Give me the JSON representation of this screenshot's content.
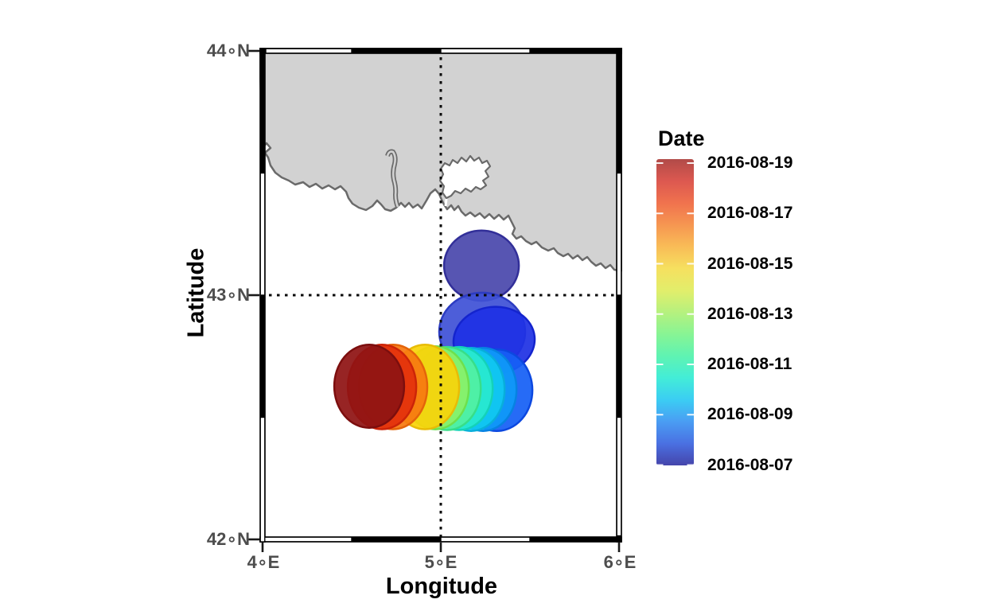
{
  "figure": {
    "x_axis": {
      "title": "Longitude",
      "tick_labels": [
        "4∘E",
        "5∘E",
        "6∘E"
      ]
    },
    "y_axis": {
      "title": "Latitude",
      "tick_labels": [
        "44∘N",
        "43∘N",
        "42∘N"
      ]
    },
    "legend": {
      "title": "Date",
      "tick_labels": [
        "2016-08-19",
        "2016-08-17",
        "2016-08-15",
        "2016-08-13",
        "2016-08-11",
        "2016-08-09",
        "2016-08-07"
      ]
    }
  },
  "map": {
    "land_color": "#D2D2D2",
    "coast_color": "#6A6A6A",
    "sea_color": "#FFFFFF"
  },
  "chart_data": {
    "type": "scatter",
    "subtype": "trajectory-map",
    "title": "",
    "xlabel": "Longitude",
    "ylabel": "Latitude",
    "xlim": [
      4,
      6
    ],
    "ylim": [
      42,
      44
    ],
    "x_ticks_deg": [
      4,
      5,
      6
    ],
    "y_ticks_deg": [
      44,
      43,
      42
    ],
    "gridlines": {
      "lon": [
        5
      ],
      "lat": [
        43
      ],
      "style": "dashed"
    },
    "legend_title": "Date",
    "legend_range": [
      "2016-08-07",
      "2016-08-19"
    ],
    "colormap_stops": [
      "#B14B48",
      "#DC5850",
      "#F0724E",
      "#F69651",
      "#F9BC57",
      "#F6E05F",
      "#E2EE6B",
      "#B6F17E",
      "#88F494",
      "#5FF3B2",
      "#43EDD7",
      "#3BCDF3",
      "#4A9DF3",
      "#4A70E2",
      "#4545AB"
    ],
    "points": [
      {
        "date": "2016-08-07",
        "lon": 5.228,
        "lat": 43.121,
        "rx_deg": 0.21,
        "ry_deg": 0.144,
        "rot": 0,
        "fill": "#4A48AC",
        "stroke": "#322F99"
      },
      {
        "date": "2016-08-08",
        "lon": 5.232,
        "lat": 42.85,
        "rx_deg": 0.241,
        "ry_deg": 0.16,
        "rot": 0,
        "fill": "#4052D6",
        "stroke": "#2C3CC2"
      },
      {
        "date": "2016-08-09",
        "lon": 5.299,
        "lat": 42.814,
        "rx_deg": 0.228,
        "ry_deg": 0.138,
        "rot": -6,
        "fill": "#1F32E4",
        "stroke": "#1424CE"
      },
      {
        "date": "2016-08-10",
        "lon": 5.313,
        "lat": 42.611,
        "rx_deg": 0.201,
        "ry_deg": 0.167,
        "rot": 0,
        "fill": "#1560F5",
        "stroke": "#0C48E0"
      },
      {
        "date": "2016-08-11",
        "lon": 5.237,
        "lat": 42.614,
        "rx_deg": 0.188,
        "ry_deg": 0.17,
        "rot": 0,
        "fill": "#0F9AF7",
        "stroke": "#0682E2"
      },
      {
        "date": "2016-08-12",
        "lon": 5.17,
        "lat": 42.614,
        "rx_deg": 0.188,
        "ry_deg": 0.17,
        "rot": 0,
        "fill": "#10C8F0",
        "stroke": "#08AEDB"
      },
      {
        "date": "2016-08-13",
        "lon": 5.103,
        "lat": 42.618,
        "rx_deg": 0.188,
        "ry_deg": 0.17,
        "rot": 0,
        "fill": "#28E9D0",
        "stroke": "#14D2B8"
      },
      {
        "date": "2016-08-14",
        "lon": 5.036,
        "lat": 42.618,
        "rx_deg": 0.188,
        "ry_deg": 0.17,
        "rot": 0,
        "fill": "#52F0A2",
        "stroke": "#38DE88"
      },
      {
        "date": "2016-08-15",
        "lon": 4.969,
        "lat": 42.621,
        "rx_deg": 0.188,
        "ry_deg": 0.17,
        "rot": 0,
        "fill": "#8AF168",
        "stroke": "#6EE04C"
      },
      {
        "date": "2016-08-16",
        "lon": 4.911,
        "lat": 42.624,
        "rx_deg": 0.192,
        "ry_deg": 0.173,
        "rot": 0,
        "fill": "#F9D40A",
        "stroke": "#E8BC06"
      },
      {
        "date": "2016-08-17",
        "lon": 4.732,
        "lat": 42.624,
        "rx_deg": 0.192,
        "ry_deg": 0.173,
        "rot": 0,
        "fill": "#F87A10",
        "stroke": "#E4640A"
      },
      {
        "date": "2016-08-18",
        "lon": 4.67,
        "lat": 42.624,
        "rx_deg": 0.192,
        "ry_deg": 0.173,
        "rot": 0,
        "fill": "#E3300C",
        "stroke": "#CC2408"
      },
      {
        "date": "2016-08-19",
        "lon": 4.598,
        "lat": 42.627,
        "rx_deg": 0.196,
        "ry_deg": 0.17,
        "rot": 0,
        "fill": "#8F1313",
        "stroke": "#7C0E0E"
      }
    ]
  }
}
